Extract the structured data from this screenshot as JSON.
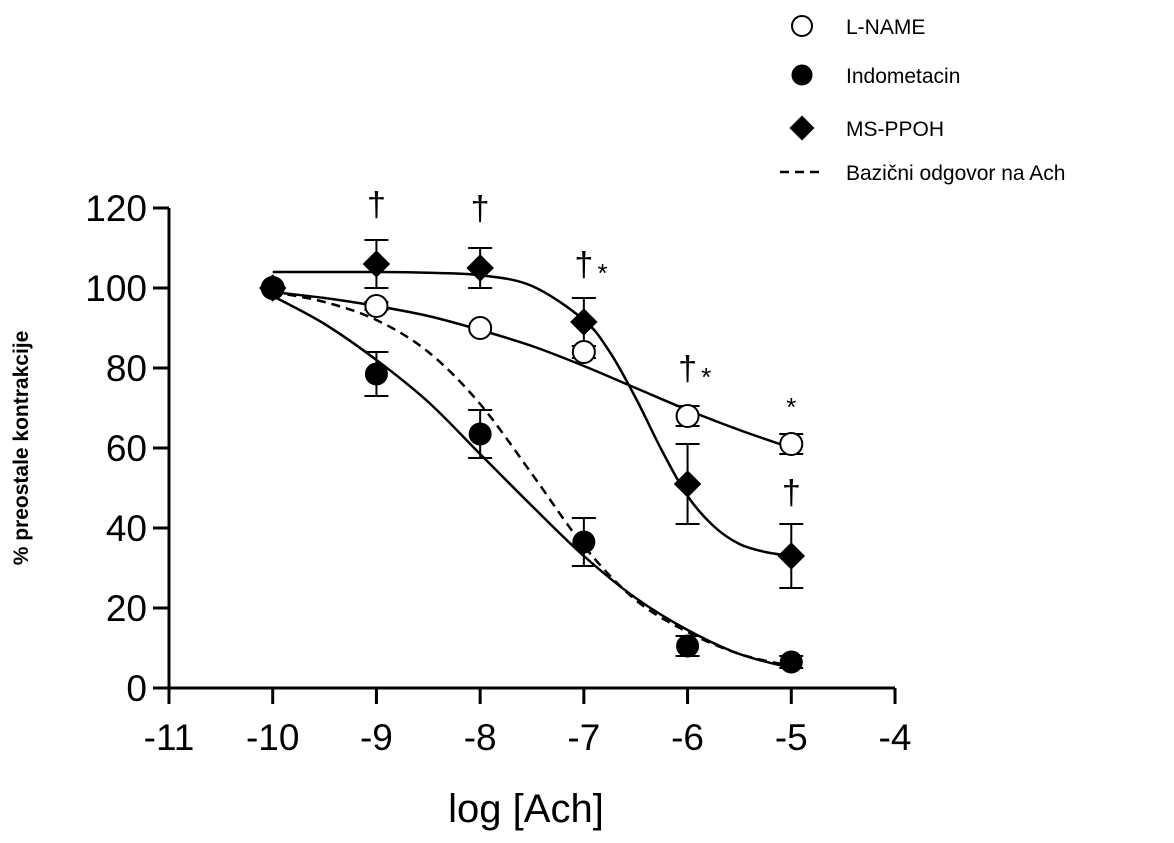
{
  "chart_data": {
    "type": "scatter",
    "title": "",
    "xlabel": "log [Ach]",
    "ylabel": "% preostale kontrakcije",
    "xlim": [
      -11,
      -4
    ],
    "ylim": [
      0,
      120
    ],
    "xticks": [
      -11,
      -10,
      -9,
      -8,
      -7,
      -6,
      -5,
      -4
    ],
    "yticks": [
      0,
      20,
      40,
      60,
      80,
      100,
      120
    ],
    "xtick_labels": [
      "-11",
      "-10",
      "-9",
      "-8",
      "-7",
      "-6",
      "-5",
      "-4"
    ],
    "ytick_labels": [
      "0",
      "20",
      "40",
      "60",
      "80",
      "100",
      "120"
    ],
    "grid": false,
    "legend_position": "top-right",
    "series": [
      {
        "name": "L-NAME",
        "marker": "open-circle",
        "x": [
          -10,
          -9,
          -8,
          -7,
          -6,
          -5
        ],
        "y": [
          100,
          95.5,
          90,
          84,
          68,
          61
        ],
        "error": [
          0,
          1,
          0,
          1.5,
          2.5,
          2.5
        ],
        "curve": {
          "x": [
            -10,
            -9.5,
            -9,
            -8.5,
            -8,
            -7.5,
            -7,
            -6.5,
            -6,
            -5.5,
            -5
          ],
          "y": [
            99,
            97.5,
            95.5,
            93,
            89.5,
            85.5,
            80.5,
            75,
            69.5,
            64.5,
            60
          ]
        }
      },
      {
        "name": "Indometacin",
        "marker": "filled-circle",
        "x": [
          -10,
          -9,
          -8,
          -7,
          -6,
          -5
        ],
        "y": [
          100,
          78.5,
          63.5,
          36.5,
          10.5,
          6.5
        ],
        "error": [
          0,
          5.5,
          6,
          6,
          2.5,
          1.5
        ],
        "curve": {
          "x": [
            -10,
            -9.5,
            -9,
            -8.5,
            -8,
            -7.5,
            -7,
            -6.5,
            -6,
            -5.5,
            -5
          ],
          "y": [
            98,
            91,
            82,
            71.5,
            58.5,
            45.5,
            33,
            22.5,
            14.5,
            8.5,
            5
          ]
        }
      },
      {
        "name": "MS-PPOH",
        "marker": "filled-diamond",
        "x": [
          -10,
          -9,
          -8,
          -7,
          -6,
          -5
        ],
        "y": [
          100,
          106,
          105,
          91.5,
          51,
          33
        ],
        "error": [
          0,
          6,
          5,
          6,
          10,
          8
        ],
        "curve": {
          "x": [
            -10,
            -9.5,
            -9,
            -8.5,
            -8,
            -7.5,
            -7,
            -6.75,
            -6.5,
            -6.25,
            -6,
            -5.75,
            -5.5,
            -5.25,
            -5
          ],
          "y": [
            104,
            104,
            104,
            103.8,
            103.2,
            100.5,
            92,
            84,
            72.5,
            59.5,
            48,
            40.5,
            36,
            34,
            33
          ]
        }
      },
      {
        "name": "Bazični odgovor na Ach",
        "marker": "none",
        "line_style": "dashed",
        "curve": {
          "x": [
            -10,
            -9.5,
            -9,
            -8.5,
            -8,
            -7.5,
            -7,
            -6.5,
            -6,
            -5.5,
            -5
          ],
          "y": [
            99,
            96.5,
            92,
            84,
            71,
            53.5,
            35.5,
            22,
            14,
            8.5,
            5.5
          ]
        }
      }
    ],
    "annotations": [
      {
        "text": "†",
        "x": -9,
        "y": 118
      },
      {
        "text": "†",
        "x": -8,
        "y": 117
      },
      {
        "text": "†",
        "x": -7,
        "y": 103
      },
      {
        "text": "*",
        "x": -6.82,
        "y": 101.5
      },
      {
        "text": "†",
        "x": -6,
        "y": 77
      },
      {
        "text": "*",
        "x": -5.82,
        "y": 75.5
      },
      {
        "text": "*",
        "x": -5,
        "y": 68
      },
      {
        "text": "†",
        "x": -5,
        "y": 46
      }
    ]
  }
}
